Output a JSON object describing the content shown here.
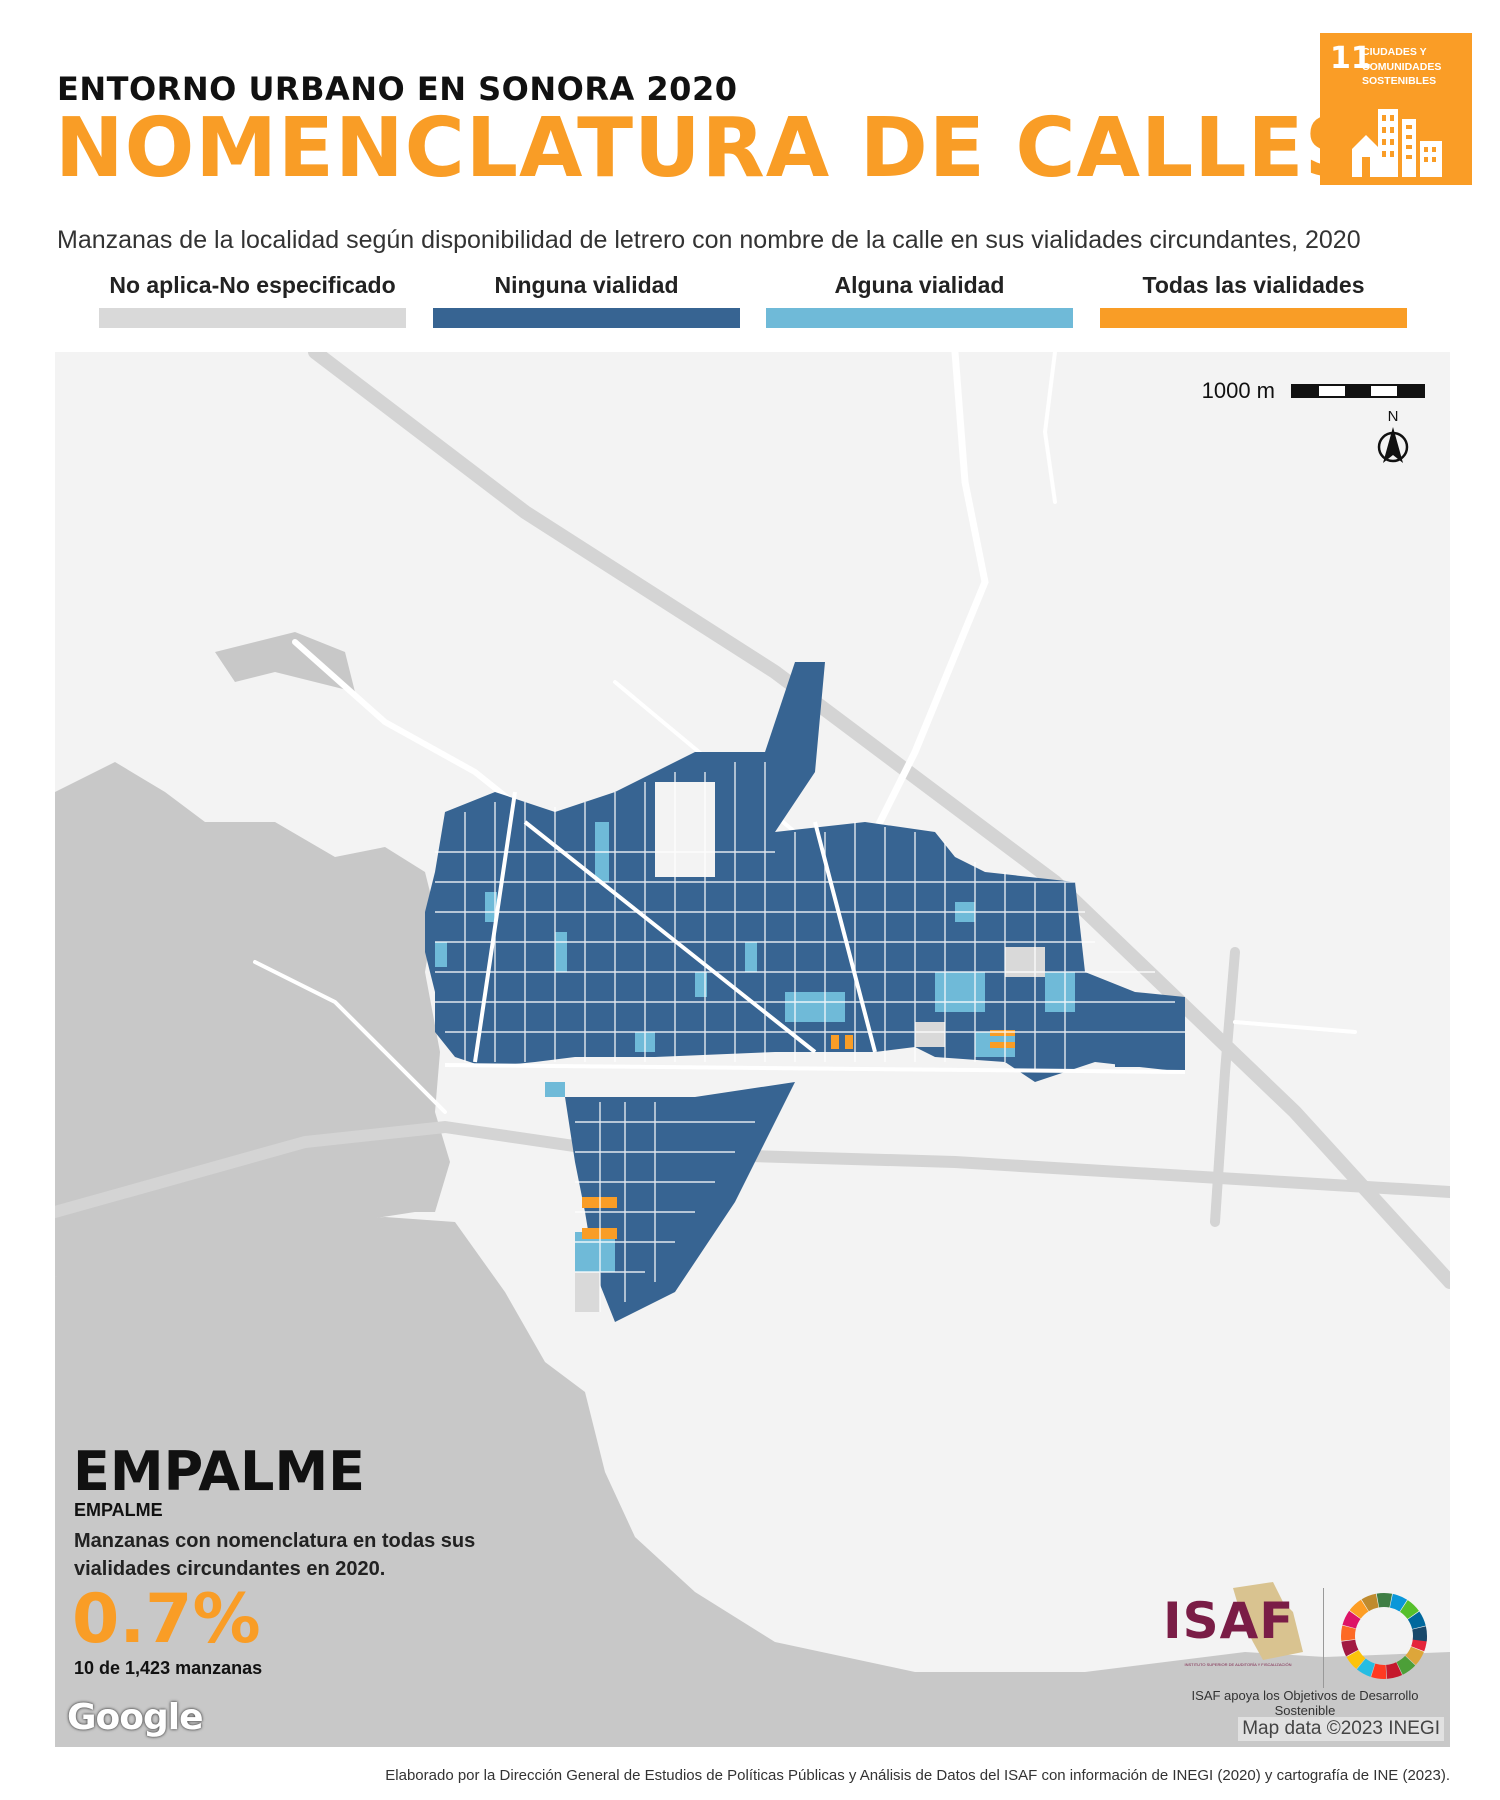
{
  "header": {
    "kicker": "ENTORNO URBANO EN SONORA 2020",
    "title": "NOMENCLATURA DE CALLES",
    "subtitle": "Manzanas de la localidad según disponibilidad de letrero con nombre de la calle en sus vialidades circundantes, 2020"
  },
  "sdg_badge": {
    "number": "11",
    "text": "CIUDADES Y COMUNIDADES SOSTENIBLES",
    "color": "#fa9d26"
  },
  "legend": {
    "items": [
      {
        "label": "No aplica-No especificado",
        "color": "#d9d9d9"
      },
      {
        "label": "Ninguna vialidad",
        "color": "#376492"
      },
      {
        "label": "Alguna vialidad",
        "color": "#6fbad8"
      },
      {
        "label": "Todas las vialidades",
        "color": "#f99d26"
      }
    ]
  },
  "map": {
    "scale_label": "1000 m",
    "north_label": "N",
    "attribution": "Map data ©2023 INEGI",
    "google_label": "Google",
    "colors": {
      "land": "#f3f3f3",
      "water": "#c8c8c8",
      "road": "#ffffff",
      "highway": "#d4d4d4",
      "block_gap": "#ffffff"
    },
    "info": {
      "locality": "EMPALME",
      "municipality": "EMPALME",
      "description": "Manzanas con nomenclatura en todas sus vialidades circundantes en 2020.",
      "percent": "0.7%",
      "count": "10 de 1,423 manzanas"
    }
  },
  "logos": {
    "isaf_text": "ISAF",
    "isaf_tagline": "INSTITUTO SUPERIOR DE AUDITORÍA Y FISCALIZACIÓN",
    "isaf_caption": "ISAF apoya los Objetivos de Desarrollo Sostenible"
  },
  "footer": "Elaborado por la Dirección General de Estudios de Políticas Públicas y Análisis de Datos del ISAF con información de INEGI (2020) y cartografía de INE (2023)."
}
